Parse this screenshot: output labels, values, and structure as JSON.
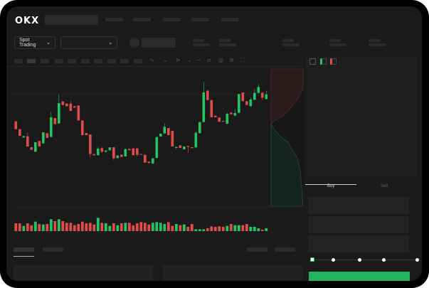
{
  "header": {
    "logo": "OKX"
  },
  "toolbar": {
    "market_select": "Spot Trading",
    "pair_chevron": "chevron-down-icon"
  },
  "order_form": {
    "tabs": [
      "Buy",
      "Sell"
    ],
    "active_tab": "Buy",
    "slider_percent": 0
  },
  "colors": {
    "up": "#26c364",
    "down": "#e04b4b",
    "background": "#1a1a1a",
    "accent": "#22b45f"
  },
  "chart_data": {
    "type": "candlestick",
    "candles": [
      [
        818,
        785,
        818,
        785
      ],
      [
        785,
        757,
        785,
        757
      ],
      [
        750,
        756,
        756,
        750
      ],
      [
        755,
        712,
        770,
        712
      ],
      [
        709,
        698,
        709,
        698
      ],
      [
        690,
        730,
        730,
        688
      ],
      [
        735,
        712,
        735,
        712
      ],
      [
        725,
        772,
        772,
        725
      ],
      [
        768,
        748,
        768,
        748
      ],
      [
        752,
        835,
        858,
        752
      ],
      [
        832,
        806,
        832,
        806
      ],
      [
        809,
        895,
        932,
        809
      ],
      [
        902,
        887,
        902,
        887
      ],
      [
        893,
        882,
        893,
        882
      ],
      [
        893,
        862,
        905,
        862
      ],
      [
        882,
        876,
        882,
        876
      ],
      [
        885,
        822,
        885,
        822
      ],
      [
        822,
        760,
        822,
        760
      ],
      [
        769,
        760,
        769,
        760
      ],
      [
        763,
        680,
        763,
        665
      ],
      [
        680,
        675,
        680,
        675
      ],
      [
        675,
        703,
        710,
        675
      ],
      [
        705,
        690,
        710,
        685
      ],
      [
        690,
        695,
        695,
        685
      ],
      [
        696,
        708,
        708,
        696
      ],
      [
        709,
        662,
        709,
        655
      ],
      [
        663,
        674,
        674,
        663
      ],
      [
        678,
        668,
        678,
        668
      ],
      [
        670,
        701,
        703,
        670
      ],
      [
        702,
        696,
        702,
        696
      ],
      [
        704,
        675,
        704,
        675
      ],
      [
        704,
        677,
        704,
        670
      ],
      [
        680,
        678,
        680,
        678
      ],
      [
        677,
        644,
        677,
        644
      ],
      [
        648,
        642,
        648,
        642
      ],
      [
        640,
        662,
        662,
        640
      ],
      [
        664,
        752,
        752,
        664
      ],
      [
        754,
        766,
        766,
        754
      ],
      [
        767,
        795,
        808,
        767
      ],
      [
        790,
        760,
        790,
        760
      ],
      [
        778,
        712,
        778,
        712
      ],
      [
        706,
        710,
        712,
        700
      ],
      [
        717,
        706,
        717,
        706
      ],
      [
        700,
        712,
        712,
        700
      ],
      [
        714,
        710,
        714,
        685
      ],
      [
        709,
        705,
        709,
        705
      ],
      [
        708,
        770,
        775,
        708
      ],
      [
        768,
        815,
        815,
        768
      ],
      [
        815,
        940,
        985,
        815
      ],
      [
        947,
        908,
        952,
        908
      ],
      [
        908,
        835,
        908,
        835
      ],
      [
        842,
        835,
        842,
        835
      ],
      [
        834,
        816,
        834,
        816
      ],
      [
        820,
        817,
        820,
        817
      ],
      [
        808,
        850,
        855,
        808
      ],
      [
        855,
        848,
        855,
        848
      ],
      [
        842,
        853,
        870,
        842
      ],
      [
        854,
        933,
        933,
        854
      ],
      [
        940,
        903,
        940,
        903
      ],
      [
        903,
        887,
        903,
        887
      ],
      [
        882,
        910,
        918,
        882
      ],
      [
        909,
        938,
        955,
        909
      ],
      [
        938,
        963,
        975,
        938
      ],
      [
        939,
        918,
        939,
        910
      ],
      [
        912,
        932,
        948,
        912
      ]
    ],
    "volume": [
      33,
      33,
      22,
      33,
      25,
      40,
      30,
      28,
      30,
      50,
      42,
      50,
      42,
      35,
      35,
      25,
      30,
      40,
      33,
      35,
      28,
      56,
      35,
      33,
      22,
      33,
      25,
      33,
      35,
      35,
      25,
      33,
      38,
      35,
      28,
      35,
      38,
      35,
      30,
      38,
      22,
      30,
      25,
      28,
      18,
      30,
      8,
      8,
      8,
      12,
      20,
      18,
      20,
      18,
      22,
      30,
      25,
      25,
      25,
      30,
      18,
      18,
      12,
      6,
      12
    ]
  }
}
